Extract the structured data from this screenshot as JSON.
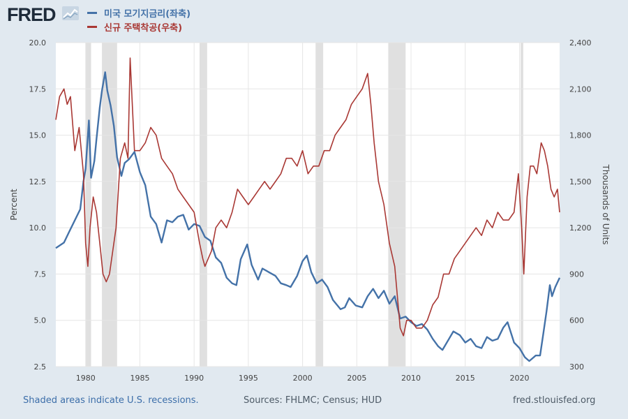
{
  "header": {
    "logo_text": "FRED",
    "logo_icon": "line-chart-icon"
  },
  "colors": {
    "mortgage": "#4472a8",
    "housing": "#a93834",
    "recession": "#e0e0e0",
    "grid": "#e6e6e6",
    "axis_text": "#444444"
  },
  "chart_data": {
    "type": "line",
    "title": "",
    "x_range": [
      1977.25,
      2023.7
    ],
    "x_ticks": [
      "1980",
      "1985",
      "1990",
      "1995",
      "2000",
      "2005",
      "2010",
      "2015",
      "2020"
    ],
    "ylabel_left": "Percent",
    "ylabel_right": "Thousands of Units",
    "ylim_left": [
      2.5,
      20.0
    ],
    "ylim_right": [
      300,
      2400
    ],
    "yticks_left": [
      "2.5",
      "5.0",
      "7.5",
      "10.0",
      "12.5",
      "15.0",
      "17.5",
      "20.0"
    ],
    "yticks_right": [
      "300",
      "600",
      "900",
      "1,200",
      "1,500",
      "1,800",
      "2,100",
      "2,400"
    ],
    "grid": true,
    "legend_position": "top-left",
    "recessions": [
      [
        1980.0,
        1980.5
      ],
      [
        1981.5,
        1982.9
      ],
      [
        1990.5,
        1991.2
      ],
      [
        2001.2,
        2001.9
      ],
      [
        2007.9,
        2009.5
      ],
      [
        2020.1,
        2020.35
      ]
    ],
    "series": [
      {
        "name": "미국 모기지금리(좌축)",
        "axis": "left",
        "x": [
          1977.25,
          1978.0,
          1978.5,
          1979.0,
          1979.5,
          1979.8,
          1980.0,
          1980.3,
          1980.5,
          1980.8,
          1981.0,
          1981.3,
          1981.5,
          1981.8,
          1982.0,
          1982.3,
          1982.6,
          1982.9,
          1983.3,
          1983.6,
          1984.0,
          1984.5,
          1985.0,
          1985.5,
          1986.0,
          1986.5,
          1987.0,
          1987.5,
          1988.0,
          1988.5,
          1989.0,
          1989.5,
          1990.0,
          1990.5,
          1991.0,
          1991.5,
          1992.0,
          1992.5,
          1993.0,
          1993.5,
          1993.9,
          1994.3,
          1994.9,
          1995.3,
          1995.9,
          1996.3,
          1996.9,
          1997.5,
          1998.0,
          1998.5,
          1998.9,
          1999.5,
          2000.0,
          2000.4,
          2000.8,
          2001.3,
          2001.8,
          2002.3,
          2002.8,
          2003.5,
          2003.9,
          2004.3,
          2004.9,
          2005.5,
          2006.0,
          2006.5,
          2007.0,
          2007.5,
          2008.0,
          2008.5,
          2009.0,
          2009.5,
          2010.0,
          2010.5,
          2011.0,
          2011.5,
          2012.0,
          2012.5,
          2012.9,
          2013.5,
          2013.9,
          2014.5,
          2015.0,
          2015.5,
          2016.0,
          2016.5,
          2017.0,
          2017.5,
          2018.0,
          2018.5,
          2018.9,
          2019.5,
          2020.0,
          2020.5,
          2020.9,
          2021.5,
          2021.9,
          2022.2,
          2022.5,
          2022.8,
          2023.0,
          2023.3,
          2023.7
        ],
        "values": [
          8.9,
          9.2,
          9.8,
          10.4,
          11.0,
          12.5,
          13.2,
          15.8,
          12.7,
          13.6,
          14.8,
          16.5,
          17.4,
          18.4,
          17.4,
          16.6,
          15.5,
          13.8,
          12.8,
          13.5,
          13.7,
          14.1,
          13.0,
          12.3,
          10.6,
          10.2,
          9.2,
          10.4,
          10.3,
          10.6,
          10.7,
          9.9,
          10.2,
          10.1,
          9.5,
          9.3,
          8.4,
          8.1,
          7.3,
          7.0,
          6.9,
          8.3,
          9.1,
          8.0,
          7.2,
          7.8,
          7.6,
          7.4,
          7.0,
          6.9,
          6.8,
          7.4,
          8.2,
          8.5,
          7.6,
          7.0,
          7.2,
          6.8,
          6.1,
          5.6,
          5.7,
          6.2,
          5.8,
          5.7,
          6.3,
          6.7,
          6.2,
          6.6,
          5.9,
          6.3,
          5.1,
          5.2,
          4.9,
          4.7,
          4.8,
          4.5,
          4.0,
          3.6,
          3.4,
          4.0,
          4.4,
          4.2,
          3.8,
          4.0,
          3.6,
          3.5,
          4.1,
          3.9,
          4.0,
          4.6,
          4.9,
          3.8,
          3.5,
          3.0,
          2.8,
          3.1,
          3.1,
          4.3,
          5.5,
          6.9,
          6.3,
          6.8,
          7.3
        ]
      },
      {
        "name": "신규 주택착공(우축)",
        "axis": "right",
        "x": [
          1977.25,
          1977.6,
          1978.0,
          1978.3,
          1978.6,
          1979.0,
          1979.4,
          1979.8,
          1980.0,
          1980.2,
          1980.4,
          1980.7,
          1981.0,
          1981.3,
          1981.6,
          1981.9,
          1982.2,
          1982.5,
          1982.8,
          1983.2,
          1983.6,
          1983.9,
          1984.1,
          1984.5,
          1985.0,
          1985.5,
          1986.0,
          1986.5,
          1987.0,
          1987.5,
          1988.0,
          1988.5,
          1989.0,
          1989.5,
          1990.0,
          1990.5,
          1990.8,
          1991.0,
          1991.3,
          1991.6,
          1992.0,
          1992.5,
          1993.0,
          1993.5,
          1994.0,
          1994.5,
          1995.0,
          1995.5,
          1996.0,
          1996.5,
          1997.0,
          1997.5,
          1998.0,
          1998.5,
          1999.0,
          1999.5,
          2000.0,
          2000.5,
          2001.0,
          2001.5,
          2002.0,
          2002.5,
          2003.0,
          2003.5,
          2004.0,
          2004.5,
          2005.0,
          2005.5,
          2006.0,
          2006.3,
          2006.6,
          2007.0,
          2007.5,
          2008.0,
          2008.5,
          2009.0,
          2009.3,
          2009.6,
          2010.0,
          2010.5,
          2011.0,
          2011.5,
          2012.0,
          2012.5,
          2013.0,
          2013.5,
          2014.0,
          2014.5,
          2015.0,
          2015.5,
          2016.0,
          2016.5,
          2017.0,
          2017.5,
          2018.0,
          2018.5,
          2019.0,
          2019.5,
          2019.9,
          2020.2,
          2020.4,
          2020.7,
          2021.0,
          2021.3,
          2021.6,
          2022.0,
          2022.3,
          2022.6,
          2022.9,
          2023.2,
          2023.5,
          2023.7
        ],
        "values": [
          1900,
          2050,
          2100,
          2000,
          2050,
          1700,
          1850,
          1550,
          1100,
          950,
          1200,
          1400,
          1300,
          1100,
          900,
          850,
          900,
          1050,
          1200,
          1650,
          1750,
          1650,
          2300,
          1700,
          1700,
          1750,
          1850,
          1800,
          1650,
          1600,
          1550,
          1450,
          1400,
          1350,
          1300,
          1100,
          1000,
          950,
          1000,
          1050,
          1200,
          1250,
          1200,
          1300,
          1450,
          1400,
          1350,
          1400,
          1450,
          1500,
          1450,
          1500,
          1550,
          1650,
          1650,
          1600,
          1700,
          1550,
          1600,
          1600,
          1700,
          1700,
          1800,
          1850,
          1900,
          2000,
          2050,
          2100,
          2200,
          2000,
          1750,
          1500,
          1350,
          1100,
          950,
          550,
          500,
          600,
          600,
          550,
          550,
          600,
          700,
          750,
          900,
          900,
          1000,
          1050,
          1100,
          1150,
          1200,
          1150,
          1250,
          1200,
          1300,
          1250,
          1250,
          1300,
          1550,
          1200,
          900,
          1400,
          1600,
          1600,
          1550,
          1750,
          1700,
          1600,
          1450,
          1400,
          1450,
          1300
        ]
      }
    ]
  },
  "footer": {
    "note": "Shaded areas indicate U.S. recessions.",
    "sources": "Sources: FHLMC; Census; HUD",
    "site": "fred.stlouisfed.org"
  }
}
